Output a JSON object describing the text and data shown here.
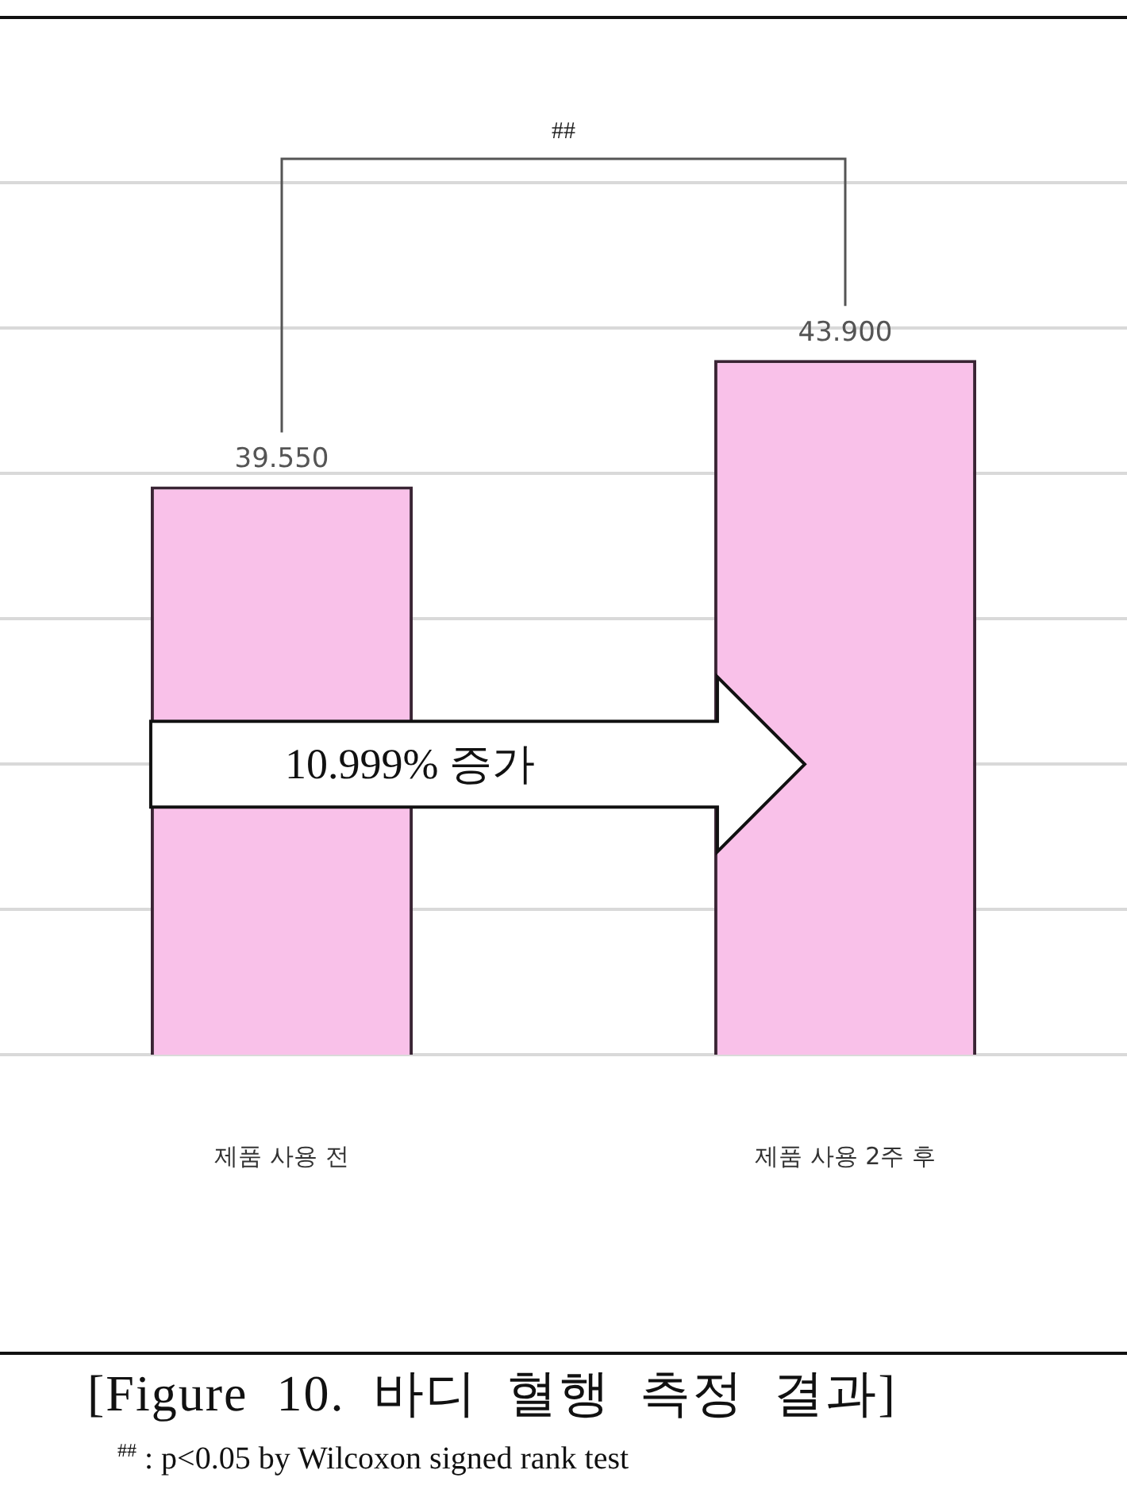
{
  "chart_data": {
    "type": "bar",
    "title": "[Figure 10. 바디 혈행 측정 결과]",
    "categories": [
      "제품 사용 전",
      "제품 사용 2주 후"
    ],
    "values": [
      39.55,
      43.9
    ],
    "value_labels": [
      "39.550",
      "43.900"
    ],
    "color": "#f9c1e9",
    "ylim": [
      20,
      50
    ],
    "grid": "y",
    "tick_labels": "x",
    "annotations": [
      "##",
      "10.999% 증가",
      "$^{##}$ : p<0.05 by Wilcoxon signed rank test"
    ]
  }
}
